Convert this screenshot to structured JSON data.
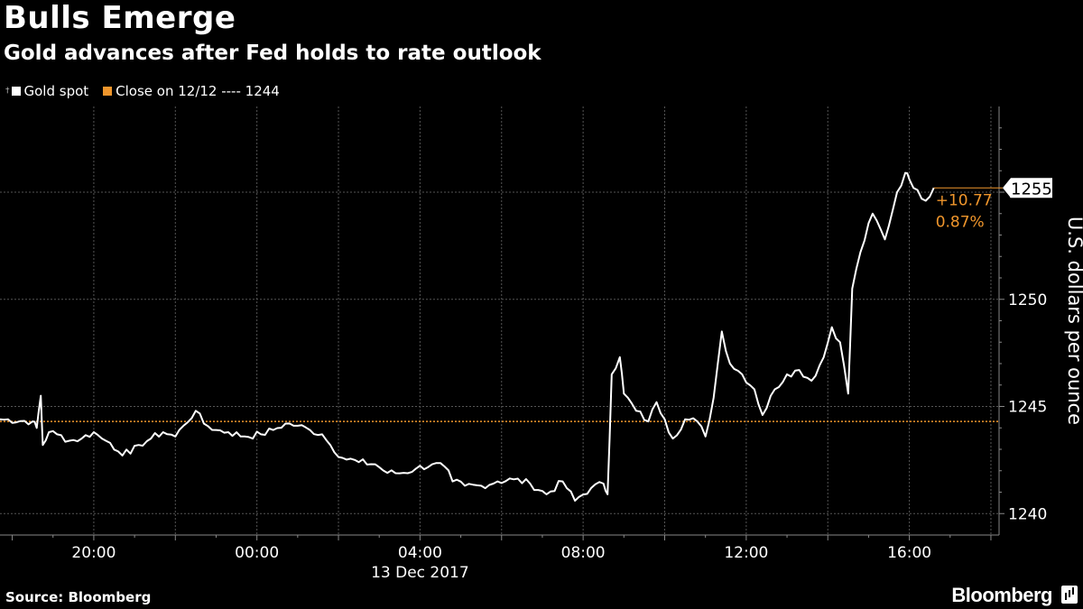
{
  "header": {
    "title": "Bulls Emerge",
    "subtitle": "Gold advances after Fed holds to rate outlook"
  },
  "legend": {
    "series1": "Gold spot",
    "series2": "Close on 12/12 ---- 1244"
  },
  "footer": {
    "source": "Source: Bloomberg",
    "brand": "Bloomberg"
  },
  "colors": {
    "background": "#000000",
    "series": "#ffffff",
    "reference": "#f0962c",
    "grid": "#555555"
  },
  "chart_data": {
    "type": "line",
    "title": "Bulls Emerge",
    "subtitle": "Gold advances after Fed holds to rate outlook",
    "ylabel": "U.S. dollars per ounce",
    "xlabel": "13 Dec 2017",
    "ylim": [
      1239,
      1259
    ],
    "xlim": [
      -6.3,
      18.2
    ],
    "x_unit": "hours relative to 13 Dec 2017 00:00",
    "x_tick_labels": [
      "20:00",
      "00:00",
      "04:00",
      "08:00",
      "12:00",
      "16:00"
    ],
    "x_tick_values": [
      -4,
      0,
      4,
      8,
      12,
      16
    ],
    "y_ticks": [
      1240,
      1245,
      1250,
      1255
    ],
    "reference_line": {
      "label": "Close on 12/12",
      "value": 1244.3
    },
    "last_value_label": "1255",
    "change_label": "+10.77",
    "change_pct_label": "0.87%",
    "grid": true,
    "series": [
      {
        "name": "Gold spot",
        "points": [
          [
            -6.3,
            1244.4
          ],
          [
            -5.5,
            1244.3
          ],
          [
            -5.4,
            1244.0
          ],
          [
            -5.3,
            1245.5
          ],
          [
            -5.25,
            1243.2
          ],
          [
            -5.1,
            1243.8
          ],
          [
            -4.9,
            1243.7
          ],
          [
            -4.6,
            1243.4
          ],
          [
            -4.3,
            1243.5
          ],
          [
            -4.0,
            1243.8
          ],
          [
            -3.8,
            1243.5
          ],
          [
            -3.6,
            1243.3
          ],
          [
            -3.4,
            1242.9
          ],
          [
            -3.1,
            1242.8
          ],
          [
            -2.9,
            1243.2
          ],
          [
            -2.6,
            1243.5
          ],
          [
            -2.3,
            1243.8
          ],
          [
            -2.0,
            1243.6
          ],
          [
            -1.8,
            1244.1
          ],
          [
            -1.5,
            1244.8
          ],
          [
            -1.3,
            1244.2
          ],
          [
            -1.0,
            1243.9
          ],
          [
            -0.7,
            1243.8
          ],
          [
            -0.3,
            1243.6
          ],
          [
            0.1,
            1243.7
          ],
          [
            0.4,
            1243.9
          ],
          [
            0.7,
            1244.2
          ],
          [
            1.0,
            1244.1
          ],
          [
            1.3,
            1243.9
          ],
          [
            1.6,
            1243.7
          ],
          [
            1.8,
            1243.2
          ],
          [
            2.1,
            1242.6
          ],
          [
            2.5,
            1242.4
          ],
          [
            2.9,
            1242.3
          ],
          [
            3.2,
            1241.9
          ],
          [
            3.6,
            1241.9
          ],
          [
            3.9,
            1242.1
          ],
          [
            4.3,
            1242.3
          ],
          [
            4.6,
            1242.2
          ],
          [
            4.8,
            1241.5
          ],
          [
            5.1,
            1241.3
          ],
          [
            5.5,
            1241.3
          ],
          [
            5.9,
            1241.5
          ],
          [
            6.3,
            1241.6
          ],
          [
            6.7,
            1241.4
          ],
          [
            7.1,
            1240.9
          ],
          [
            7.5,
            1241.5
          ],
          [
            7.8,
            1240.6
          ],
          [
            8.2,
            1241.2
          ],
          [
            8.5,
            1241.4
          ],
          [
            8.6,
            1240.9
          ],
          [
            8.7,
            1246.5
          ],
          [
            8.9,
            1247.3
          ],
          [
            9.0,
            1245.6
          ],
          [
            9.3,
            1244.8
          ],
          [
            9.6,
            1244.3
          ],
          [
            9.8,
            1245.2
          ],
          [
            10.0,
            1244.4
          ],
          [
            10.2,
            1243.5
          ],
          [
            10.5,
            1244.4
          ],
          [
            10.8,
            1244.3
          ],
          [
            11.0,
            1243.6
          ],
          [
            11.2,
            1245.4
          ],
          [
            11.4,
            1248.5
          ],
          [
            11.6,
            1247.0
          ],
          [
            11.9,
            1246.5
          ],
          [
            12.2,
            1245.8
          ],
          [
            12.4,
            1244.6
          ],
          [
            12.7,
            1245.8
          ],
          [
            13.0,
            1246.5
          ],
          [
            13.3,
            1246.7
          ],
          [
            13.6,
            1246.2
          ],
          [
            13.9,
            1247.3
          ],
          [
            14.1,
            1248.7
          ],
          [
            14.3,
            1248.0
          ],
          [
            14.5,
            1245.6
          ],
          [
            14.6,
            1250.5
          ],
          [
            14.8,
            1252.2
          ],
          [
            15.1,
            1254.0
          ],
          [
            15.4,
            1252.8
          ],
          [
            15.7,
            1255.0
          ],
          [
            15.9,
            1255.9
          ],
          [
            16.0,
            1255.6
          ],
          [
            16.2,
            1255.1
          ],
          [
            16.4,
            1254.6
          ],
          [
            16.6,
            1255.2
          ]
        ]
      }
    ]
  }
}
